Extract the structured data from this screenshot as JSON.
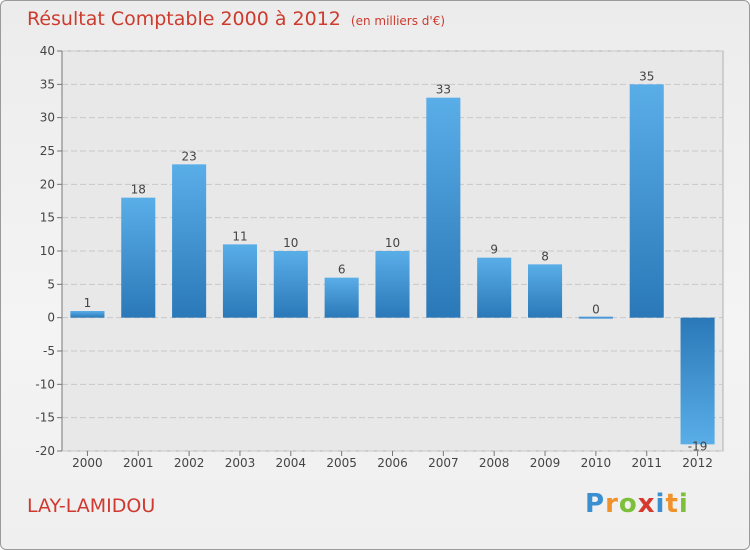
{
  "title": "Résultat Comptable 2000 à 2012",
  "unit_note": "(en milliers d'€)",
  "commune": "LAY-LAMIDOU",
  "brand": {
    "letters": [
      {
        "char": "P",
        "color": "#3a8fd1"
      },
      {
        "char": "r",
        "color": "#f0922b"
      },
      {
        "char": "o",
        "color": "#7bbf3a"
      },
      {
        "char": "x",
        "color": "#d63a2f"
      },
      {
        "char": "i",
        "color": "#3a8fd1"
      },
      {
        "char": "t",
        "color": "#f0922b"
      },
      {
        "char": "i",
        "color": "#7bbf3a"
      }
    ]
  },
  "chart_data": {
    "type": "bar",
    "title": "Résultat Comptable 2000 à 2012",
    "xlabel": "",
    "ylabel": "",
    "categories": [
      "2000",
      "2001",
      "2002",
      "2003",
      "2004",
      "2005",
      "2006",
      "2007",
      "2008",
      "2009",
      "2010",
      "2011",
      "2012"
    ],
    "values": [
      1,
      18,
      23,
      11,
      10,
      6,
      10,
      33,
      9,
      8,
      0,
      35,
      -19
    ],
    "value_labels": [
      "1",
      "18",
      "23",
      "11",
      "10",
      "6",
      "10",
      "33",
      "9",
      "8",
      "0",
      "35",
      "-19"
    ],
    "ylim": [
      -20,
      40
    ],
    "yticks": [
      -20,
      -15,
      -10,
      -5,
      0,
      5,
      10,
      15,
      20,
      25,
      30,
      35,
      40
    ],
    "ytick_labels": [
      "-20",
      "-15",
      "-10",
      "-5",
      "0",
      "5",
      "10",
      "15",
      "20",
      "25",
      "30",
      "35",
      "40"
    ],
    "grid": true,
    "bar_color_top": "#5aaee8",
    "bar_color_bottom": "#2a78b8"
  }
}
